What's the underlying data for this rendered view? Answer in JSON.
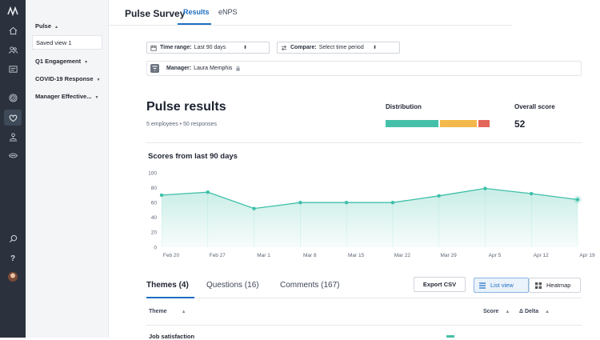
{
  "app": {
    "title": "Pulse Survey"
  },
  "header": {
    "tabs": [
      {
        "label": "Results",
        "active": true
      },
      {
        "label": "eNPS",
        "active": false
      }
    ]
  },
  "rail": {
    "icons": [
      "logo-icon",
      "home-icon",
      "people-icon",
      "reports-icon",
      "target-icon",
      "heart-icon",
      "org-icon",
      "eye-icon",
      "search-icon",
      "help-icon",
      "avatar"
    ]
  },
  "sidebar": {
    "items": [
      {
        "label": "Pulse",
        "caret": "▲"
      },
      {
        "label": "Saved view 1"
      },
      {
        "label": "Q1 Engagement",
        "caret": "▼"
      },
      {
        "label": "COVID-19 Response",
        "caret": "▼"
      },
      {
        "label": "Manager Effective...",
        "caret": "▼"
      }
    ]
  },
  "filters": {
    "time_range": {
      "label": "Time range:",
      "value": "Last 90 days"
    },
    "compare": {
      "label": "Compare:",
      "value": "Select time period"
    },
    "manager": {
      "label": "Manager:",
      "value": "Laura Memphis"
    }
  },
  "results": {
    "title": "Pulse results",
    "subtitle": "5 employees • 50 responses",
    "distribution_label": "Distribution",
    "distribution": [
      {
        "share": 0.52,
        "color": "#46bfa8"
      },
      {
        "share": 0.37,
        "color": "#f2b84b"
      },
      {
        "share": 0.11,
        "color": "#e2665a"
      }
    ],
    "overall_label": "Overall score",
    "overall_value": "52"
  },
  "chart_data": {
    "type": "area",
    "title": "Scores from last 90 days",
    "categories": [
      "Feb 20",
      "Feb 27",
      "Mar 1",
      "Mar 8",
      "Mar 15",
      "Mar 22",
      "Mar 29",
      "Apr 5",
      "Apr 12",
      "Apr 19"
    ],
    "values": [
      70,
      74,
      52,
      60,
      60,
      60,
      69,
      79,
      72,
      64
    ],
    "yticks": [
      0,
      20,
      40,
      60,
      80,
      100
    ],
    "ylim": [
      0,
      100
    ],
    "color": "#3dbfa8",
    "grid": false
  },
  "bottom": {
    "tabs": [
      {
        "label": "Themes (4)",
        "active": true
      },
      {
        "label": "Questions (16)",
        "active": false
      },
      {
        "label": "Comments (167)",
        "active": false
      }
    ],
    "export_label": "Export CSV",
    "list_view_label": "List view",
    "heatmap_label": "Heatmap"
  },
  "table": {
    "columns": [
      {
        "label": "Theme",
        "sort": "▲"
      },
      {
        "label": "Score",
        "sort": "▲"
      },
      {
        "label": "Δ Delta",
        "sort": "▲"
      }
    ],
    "rows": [
      {
        "theme": "Job satisfaction"
      }
    ]
  }
}
